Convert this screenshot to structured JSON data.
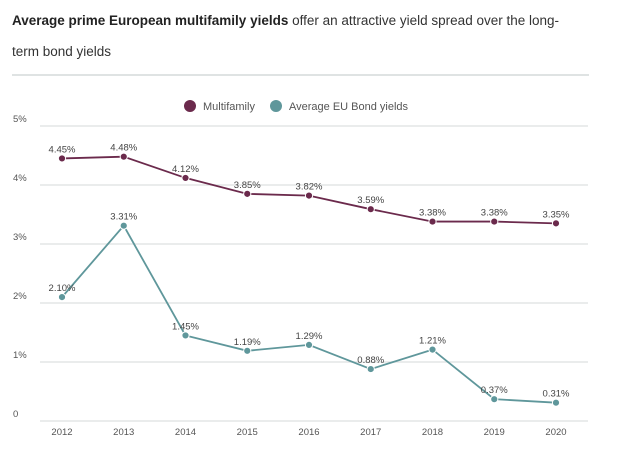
{
  "header": {
    "title_bold": "Average prime European multifamily yields",
    "title_rest": " offer an attractive yield spread over the long-term bond yields"
  },
  "chart_data": {
    "type": "line",
    "title": "",
    "xlabel": "",
    "ylabel": "",
    "categories": [
      "2012",
      "2013",
      "2014",
      "2015",
      "2016",
      "2017",
      "2018",
      "2019",
      "2020"
    ],
    "ylim": [
      0,
      5
    ],
    "yticks": [
      0,
      1,
      2,
      3,
      4,
      5
    ],
    "ytick_labels": [
      "0",
      "1%",
      "2%",
      "3%",
      "4%",
      "5%"
    ],
    "grid": true,
    "legend": "top-center",
    "series": [
      {
        "name": "Multifamily",
        "color": "#6b2a4c",
        "values": [
          4.45,
          4.48,
          4.12,
          3.85,
          3.82,
          3.59,
          3.38,
          3.38,
          3.35
        ],
        "labels": [
          "4.45%",
          "4.48%",
          "4.12%",
          "3.85%",
          "3.82%",
          "3.59%",
          "3.38%",
          "3.38%",
          "3.35%"
        ]
      },
      {
        "name": "Average EU Bond yields",
        "color": "#5f979b",
        "values": [
          2.1,
          3.31,
          1.45,
          1.19,
          1.29,
          0.88,
          1.21,
          0.37,
          0.31
        ],
        "labels": [
          "2.10%",
          "3.31%",
          "1.45%",
          "1.19%",
          "1.29%",
          "0.88%",
          "1.21%",
          "0.37%",
          "0.31%"
        ]
      }
    ]
  }
}
